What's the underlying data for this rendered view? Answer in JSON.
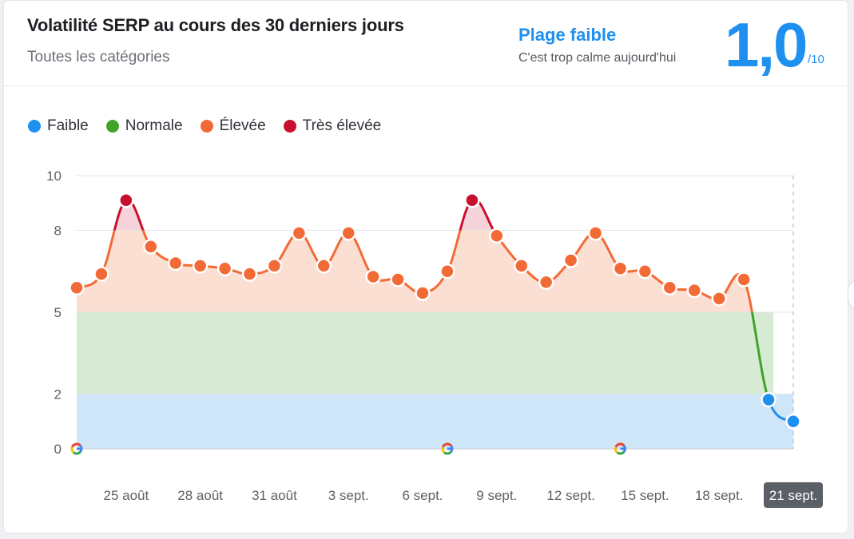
{
  "header": {
    "title": "Volatilité SERP au cours des 30 derniers jours",
    "subtitle": "Toutes les catégories",
    "status_label": "Plage faible",
    "status_desc": "C'est trop calme aujourd'hui",
    "score": "1,0",
    "score_max": "/10"
  },
  "colors": {
    "faible": "#1e90ef",
    "normale": "#3fa32a",
    "elevee": "#f26b36",
    "tres_elevee": "#c8102e",
    "band_faible": "#cfe6f8",
    "band_normale": "#d7ead3",
    "band_elevee": "#fbdfd3",
    "band_tres_elevee": "#f6d3da"
  },
  "legend": [
    {
      "label": "Faible",
      "color": "#1e90ef"
    },
    {
      "label": "Normale",
      "color": "#3fa32a"
    },
    {
      "label": "Élevée",
      "color": "#f26b36"
    },
    {
      "label": "Très élevée",
      "color": "#c8102e"
    }
  ],
  "chart_data": {
    "type": "line",
    "title": "Volatilité SERP au cours des 30 derniers jours",
    "ylim": [
      0,
      10
    ],
    "y_ticks": [
      {
        "value": 0,
        "label": "0"
      },
      {
        "value": 2,
        "label": "2"
      },
      {
        "value": 5,
        "label": "5"
      },
      {
        "value": 8,
        "label": "8"
      },
      {
        "value": 10,
        "label": "10"
      }
    ],
    "thresholds": {
      "faible": [
        0,
        2
      ],
      "normale": [
        2,
        5
      ],
      "elevee": [
        5,
        8
      ],
      "tres_elevee": [
        8,
        10
      ]
    },
    "x_labels": [
      "25 août",
      "28 août",
      "31 août",
      "3 sept.",
      "6 sept.",
      "9 sept.",
      "12 sept.",
      "15 sept.",
      "18 sept.",
      "21 sept."
    ],
    "x_label_index": [
      2,
      5,
      8,
      11,
      14,
      17,
      20,
      23,
      26,
      29
    ],
    "highlight_label": "21 sept.",
    "google_update_markers": [
      0,
      15,
      22
    ],
    "dates": [
      "23 août",
      "24 août",
      "25 août",
      "26 août",
      "27 août",
      "28 août",
      "29 août",
      "30 août",
      "31 août",
      "1 sept.",
      "2 sept.",
      "3 sept.",
      "4 sept.",
      "5 sept.",
      "6 sept.",
      "7 sept.",
      "8 sept.",
      "9 sept.",
      "10 sept.",
      "11 sept.",
      "12 sept.",
      "13 sept.",
      "14 sept.",
      "15 sept.",
      "16 sept.",
      "17 sept.",
      "18 sept.",
      "19 sept.",
      "20 sept.",
      "21 sept."
    ],
    "values": [
      5.9,
      6.4,
      9.1,
      7.4,
      6.8,
      6.7,
      6.6,
      6.4,
      6.7,
      7.9,
      6.7,
      7.9,
      6.3,
      6.2,
      5.7,
      6.5,
      9.1,
      7.8,
      6.7,
      6.1,
      6.9,
      7.9,
      6.6,
      6.5,
      5.9,
      5.8,
      5.5,
      6.2,
      1.8,
      1.0
    ]
  }
}
